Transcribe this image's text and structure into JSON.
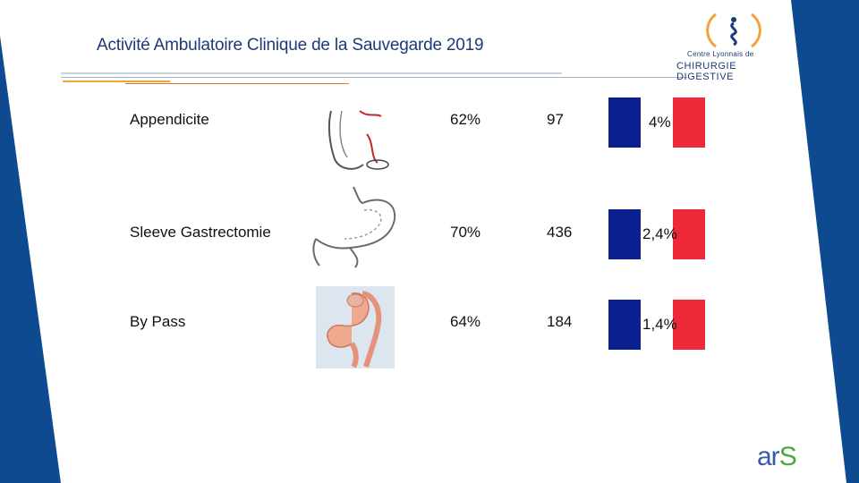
{
  "slide": {
    "title": "Activité Ambulatoire Clinique de la Sauvegarde 2019"
  },
  "logo": {
    "line1": "Centre Lyonnais de",
    "line2": "CHIRURGIE DIGESTIVE"
  },
  "rows": [
    {
      "label": "Appendicite",
      "percent": "62%",
      "count": "97",
      "rate": "4%",
      "illustration": "appendix-illustration"
    },
    {
      "label": "Sleeve Gastrectomie",
      "percent": "70%",
      "count": "436",
      "rate": "2,4%",
      "illustration": "stomach-sleeve-illustration"
    },
    {
      "label": "By Pass",
      "percent": "64%",
      "count": "184",
      "rate": "1,4%",
      "illustration": "bypass-illustration"
    }
  ],
  "footer_logo": {
    "text": "ar",
    "text_s": "S"
  },
  "colors": {
    "navy": "#0d4a8f",
    "flag_blue": "#0c2190",
    "flag_red": "#ee2a3a",
    "title": "#1d3a78",
    "ars_green": "#4aa83f"
  }
}
